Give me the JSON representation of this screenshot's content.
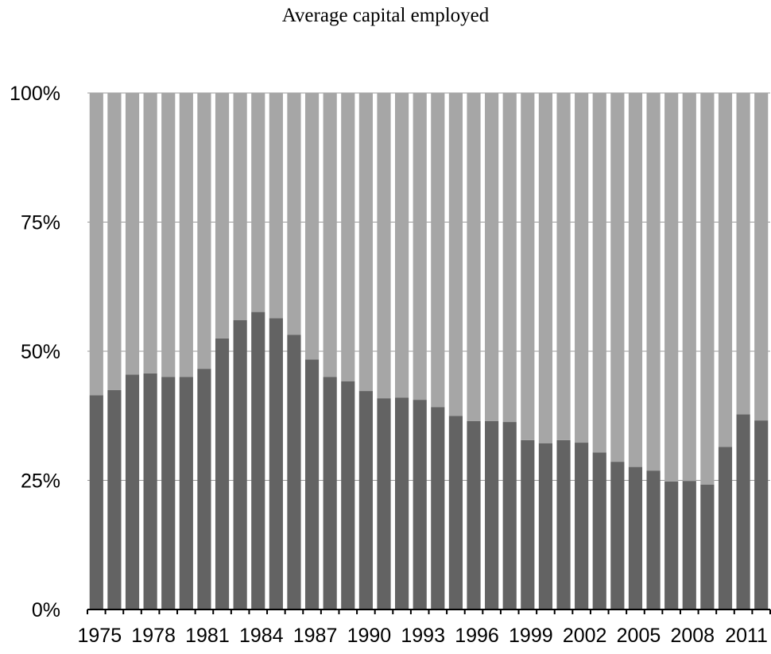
{
  "chart_data": {
    "type": "bar",
    "stacked": true,
    "percent": true,
    "title": "Average capital employed",
    "xlabel": "",
    "ylabel": "",
    "ylim": [
      0,
      100
    ],
    "yticks": [
      "0%",
      "25%",
      "50%",
      "75%",
      "100%"
    ],
    "categories": [
      "1975",
      "1976",
      "1977",
      "1978",
      "1979",
      "1980",
      "1981",
      "1982",
      "1983",
      "1984",
      "1985",
      "1986",
      "1987",
      "1988",
      "1989",
      "1990",
      "1991",
      "1992",
      "1993",
      "1994",
      "1995",
      "1996",
      "1997",
      "1998",
      "1999",
      "2000",
      "2001",
      "2002",
      "2003",
      "2004",
      "2005",
      "2006",
      "2007",
      "2008",
      "2009",
      "2010",
      "2011",
      "2012"
    ],
    "xtick_labels": [
      "1975",
      "1978",
      "1981",
      "1984",
      "1987",
      "1990",
      "1993",
      "1996",
      "1999",
      "2002",
      "2005",
      "2008",
      "2011"
    ],
    "series": [
      {
        "color": "#636363",
        "values": [
          41.5,
          42.5,
          45.5,
          45.7,
          45,
          45,
          46.6,
          52.5,
          56,
          57.6,
          56.4,
          53.2,
          48.4,
          45,
          44.2,
          42.3,
          40.9,
          41,
          40.6,
          39.2,
          37.5,
          36.5,
          36.5,
          36.3,
          32.8,
          32.2,
          32.8,
          32.3,
          30.4,
          28.6,
          27.6,
          26.9,
          24.8,
          24.9,
          24.2,
          31.5,
          37.8,
          36.6
        ]
      },
      {
        "color": "#a6a6a6",
        "values": [
          58.5,
          57.5,
          54.5,
          54.3,
          55,
          55,
          53.4,
          47.5,
          44,
          42.4,
          43.6,
          46.8,
          51.6,
          55,
          55.8,
          57.7,
          59.1,
          59,
          59.4,
          60.8,
          62.5,
          63.5,
          63.5,
          63.7,
          67.2,
          67.8,
          67.2,
          67.7,
          69.6,
          71.4,
          72.4,
          73.1,
          75.2,
          75.1,
          75.8,
          68.5,
          62.2,
          63.4
        ]
      }
    ],
    "grid": true
  }
}
